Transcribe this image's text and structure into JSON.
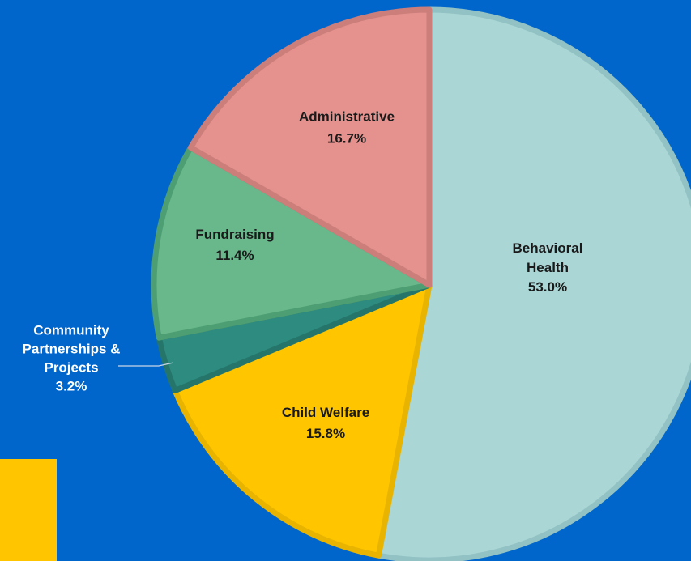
{
  "chart_data": {
    "type": "pie",
    "slices": [
      {
        "label": "Behavioral\nHealth",
        "value": 53.0,
        "display": "53.0%",
        "color": "#AAD6D6",
        "stroke": "#93C2C4",
        "label_color": "#1A1A1A"
      },
      {
        "label": "Child Welfare",
        "value": 15.8,
        "display": "15.8%",
        "color": "#FFC600",
        "stroke": "#E8B400",
        "label_color": "#1A1A1A"
      },
      {
        "label": "Community\nPartnerships &\nProjects",
        "value": 3.2,
        "display": "3.2%",
        "color": "#2E8B7F",
        "stroke": "#25756B",
        "label_color": "#FFFFFF"
      },
      {
        "label": "Fundraising",
        "value": 11.4,
        "display": "11.4%",
        "color": "#68B88C",
        "stroke": "#4E9E73",
        "label_color": "#1A1A1A"
      },
      {
        "label": "Administrative",
        "value": 16.7,
        "display": "16.7%",
        "color": "#E5928E",
        "stroke": "#CC7E7A",
        "label_color": "#1A1A1A"
      }
    ],
    "start_angle_deg": 0,
    "direction": "clockwise",
    "legend": "none",
    "background": "#0066CC",
    "accent_block_color": "#FFC600"
  }
}
